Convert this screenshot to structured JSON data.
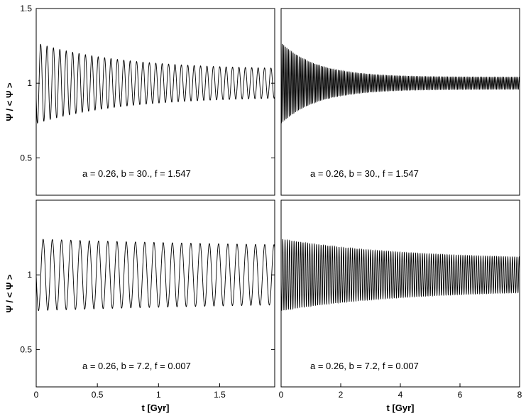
{
  "chart_data": [
    {
      "type": "line",
      "panel": "top-left",
      "annotation": "a = 0.26, b = 30., f = 1.547",
      "ylabel": "Ψ / < Ψ >",
      "xlabel": "",
      "xlim": [
        0,
        1.95
      ],
      "ylim": [
        0.25,
        1.5
      ],
      "xticks": [],
      "yticks": [
        0.5,
        1,
        1.5
      ],
      "ytick_labels": [
        "0.5",
        "1",
        "1.5"
      ],
      "series": [
        {
          "model": "damped_oscillation",
          "x_start": 0,
          "x_end": 1.95,
          "mean": 1.0,
          "initial_amplitude": 0.27,
          "final_amplitude": 0.09,
          "decay_time": 0.7,
          "period": 0.0523,
          "phase_start": "trough",
          "initial_value": 0.91
        }
      ]
    },
    {
      "type": "line",
      "panel": "top-right",
      "annotation": "a = 0.26, b = 30., f = 1.547",
      "ylabel": "",
      "xlabel": "",
      "xlim": [
        0,
        8
      ],
      "ylim": [
        0.25,
        1.5
      ],
      "xticks": [],
      "yticks": [],
      "series": [
        {
          "model": "damped_oscillation",
          "x_start": 0,
          "x_end": 8,
          "mean": 1.0,
          "initial_amplitude": 0.27,
          "final_amplitude": 0.04,
          "decay_time": 1.2,
          "period": 0.0523,
          "phase_start": "trough",
          "initial_value": 0.91
        }
      ]
    },
    {
      "type": "line",
      "panel": "bottom-left",
      "annotation": "a = 0.26, b = 7.2, f = 0.007",
      "ylabel": "Ψ / < Ψ >",
      "xlabel": "t [Gyr]",
      "xlim": [
        0,
        1.95
      ],
      "ylim": [
        0.25,
        1.5
      ],
      "xticks": [
        0,
        0.5,
        1,
        1.5
      ],
      "xtick_labels": [
        "0",
        "0.5",
        "1",
        "1.5"
      ],
      "yticks": [
        0.5,
        1
      ],
      "ytick_labels": [
        "0.5",
        "1"
      ],
      "series": [
        {
          "model": "damped_oscillation",
          "x_start": 0,
          "x_end": 1.95,
          "mean": 1.0,
          "initial_amplitude": 0.24,
          "final_amplitude": 0.17,
          "decay_time": 2.5,
          "period": 0.0755,
          "phase_start": "trough",
          "initial_value": 1.0
        }
      ]
    },
    {
      "type": "line",
      "panel": "bottom-right",
      "annotation": "a = 0.26, b = 7.2, f = 0.007",
      "ylabel": "",
      "xlabel": "t [Gyr]",
      "xlim": [
        0,
        8
      ],
      "ylim": [
        0.25,
        1.5
      ],
      "xticks": [
        0,
        2,
        4,
        6,
        8
      ],
      "xtick_labels": [
        "0",
        "2",
        "4",
        "6",
        "8"
      ],
      "yticks": [],
      "series": [
        {
          "model": "damped_oscillation",
          "x_start": 0,
          "x_end": 8,
          "mean": 1.0,
          "initial_amplitude": 0.24,
          "final_amplitude": 0.1,
          "decay_time": 4.0,
          "period": 0.0755,
          "phase_start": "trough",
          "initial_value": 1.0
        }
      ]
    }
  ]
}
